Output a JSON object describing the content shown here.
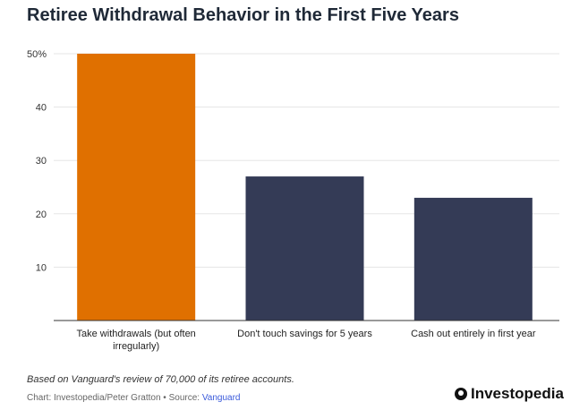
{
  "chart_data": {
    "type": "bar",
    "title": "Retiree Withdrawal Behavior in the First Five Years",
    "categories": [
      [
        "Take withdrawals (but often",
        "irregularly)"
      ],
      [
        "Don't touch savings for 5 years"
      ],
      [
        "Cash out entirely in first year"
      ]
    ],
    "values": [
      50,
      27,
      23
    ],
    "bar_colors": [
      "#e07000",
      "#343b56",
      "#343b56"
    ],
    "ylim": [
      0,
      50
    ],
    "yticks": [
      10,
      20,
      30,
      40,
      50
    ],
    "ytick_labels": [
      "10",
      "20",
      "30",
      "40",
      "50%"
    ],
    "grid": true,
    "xlabel": "",
    "ylabel": ""
  },
  "footer": {
    "note": "Based on Vanguard's review of 70,000 of its retiree accounts.",
    "credit_prefix": "Chart: Investopedia/Peter Gratton • Source: ",
    "source_name": "Vanguard",
    "brand": "Investopedia"
  },
  "colors": {
    "accent": "#e07000",
    "bar_default": "#343b56",
    "gridline": "#e5e5e5",
    "axis": "#333333"
  }
}
